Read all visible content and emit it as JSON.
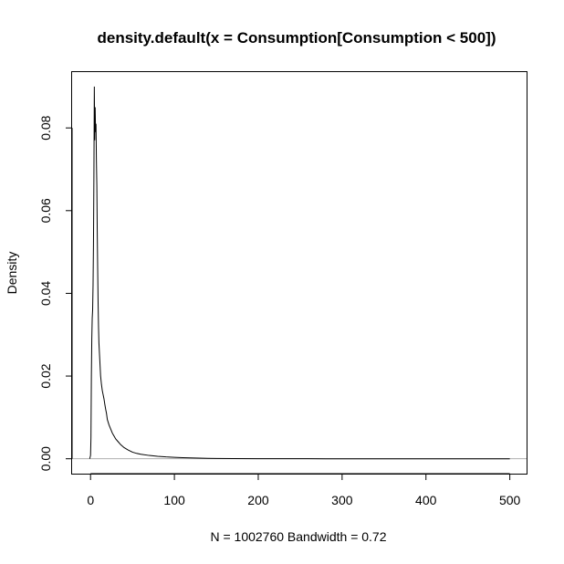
{
  "chart_data": {
    "type": "line",
    "title": "density.default(x = Consumption[Consumption < 500])",
    "xlabel": "N = 1002760   Bandwidth = 0.72",
    "ylabel": "Density",
    "xlim": [
      -22,
      520
    ],
    "ylim": [
      -0.0036,
      0.0935
    ],
    "x_ticks": [
      "0",
      "100",
      "200",
      "300",
      "400",
      "500"
    ],
    "y_ticks": [
      "0.00",
      "0.02",
      "0.04",
      "0.06",
      "0.08"
    ],
    "x_tick_values": [
      0,
      100,
      200,
      300,
      400,
      500
    ],
    "y_tick_values": [
      0,
      0.02,
      0.04,
      0.06,
      0.08
    ],
    "zero_line_color": "#b0b0b0",
    "series": [
      {
        "line_color": "#000000",
        "x": [
          -1,
          0,
          0.5,
          1,
          1.5,
          2,
          2.5,
          3,
          3.5,
          4,
          4.5,
          5,
          5.5,
          6,
          6.5,
          7,
          7.5,
          8,
          8.5,
          9,
          9.5,
          10,
          10.5,
          11,
          12,
          13,
          14,
          15,
          16,
          17,
          18,
          19,
          20,
          22,
          24,
          26,
          28,
          30,
          33,
          36,
          40,
          45,
          50,
          55,
          60,
          70,
          80,
          90,
          100,
          110,
          120,
          130,
          140,
          150,
          170,
          200,
          230,
          260,
          280,
          300,
          400,
          500
        ],
        "y": [
          0,
          0.0008,
          0.005,
          0.02,
          0.029,
          0.034,
          0.036,
          0.042,
          0.052,
          0.068,
          0.09,
          0.077,
          0.085,
          0.079,
          0.081,
          0.072,
          0.066,
          0.055,
          0.046,
          0.038,
          0.032,
          0.028,
          0.026,
          0.024,
          0.02,
          0.018,
          0.0165,
          0.0155,
          0.0145,
          0.0132,
          0.012,
          0.011,
          0.0095,
          0.0082,
          0.0072,
          0.0062,
          0.0055,
          0.0048,
          0.0041,
          0.0034,
          0.0027,
          0.0021,
          0.0016,
          0.0013,
          0.0011,
          0.0008,
          0.0006,
          0.00045,
          0.00035,
          0.00027,
          0.0002,
          0.00015,
          0.00011,
          8e-05,
          5e-05,
          2e-05,
          1e-05,
          5e-06,
          0,
          0,
          0,
          0
        ]
      }
    ]
  }
}
